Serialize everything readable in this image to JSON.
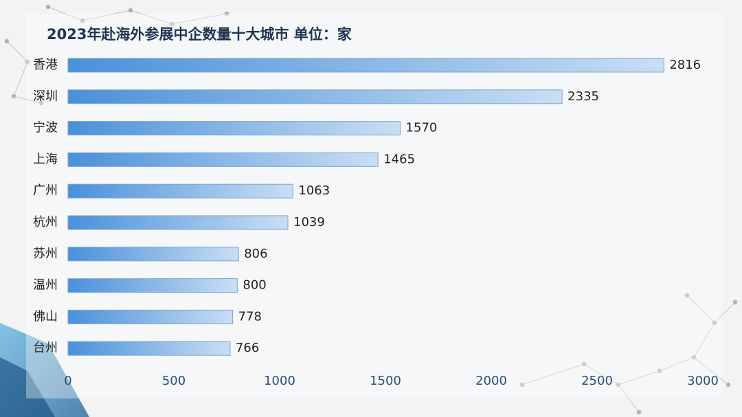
{
  "chart_data": {
    "type": "bar",
    "orientation": "horizontal",
    "title": "2023年赴海外参展中企数量十大城市   单位：家",
    "categories": [
      "香港",
      "深圳",
      "宁波",
      "上海",
      "广州",
      "杭州",
      "苏州",
      "温州",
      "佛山",
      "台州"
    ],
    "values": [
      2816,
      2335,
      1570,
      1465,
      1063,
      1039,
      806,
      800,
      778,
      766
    ],
    "x_ticks": [
      "0",
      "500",
      "1000",
      "1500",
      "2000",
      "2500",
      "3000"
    ],
    "xlim": [
      0,
      3000
    ],
    "grid": false,
    "legend": "none",
    "colors": {
      "bar_start": "#4a90d9",
      "bar_end": "#c9def3",
      "bar_edge": "#7aa6d6",
      "axis_text": "#2a4e7a"
    }
  }
}
